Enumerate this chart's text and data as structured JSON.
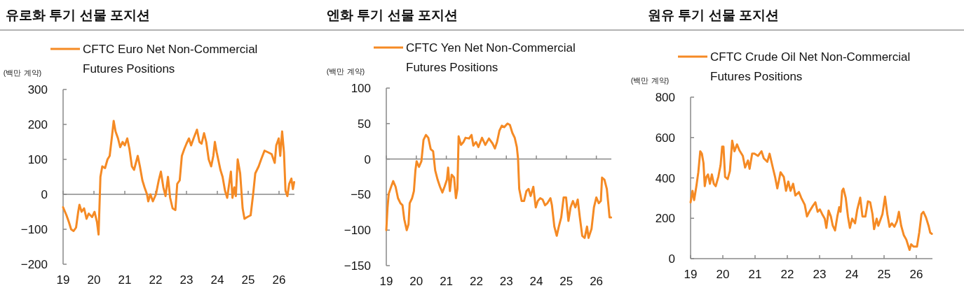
{
  "chart_data": [
    {
      "type": "line",
      "title": "유로화 투기 선물 포지션",
      "ylabel": "(백만 계약)",
      "legend": "top",
      "xlim": [
        19,
        26.5
      ],
      "xticks": [
        19,
        20,
        21,
        22,
        23,
        24,
        25,
        26
      ],
      "ylim": [
        -200,
        300
      ],
      "yticks": [
        -200,
        -100,
        0,
        100,
        200,
        300
      ],
      "x": [
        19.0,
        19.11,
        19.19,
        19.26,
        19.34,
        19.42,
        19.49,
        19.53,
        19.6,
        19.68,
        19.76,
        19.83,
        19.94,
        20.02,
        20.1,
        20.15,
        20.21,
        20.27,
        20.36,
        20.44,
        20.51,
        20.59,
        20.64,
        20.7,
        20.78,
        20.85,
        20.93,
        21.0,
        21.08,
        21.15,
        21.23,
        21.3,
        21.42,
        21.49,
        21.57,
        21.64,
        21.72,
        21.76,
        21.83,
        21.91,
        22.01,
        22.1,
        22.17,
        22.25,
        22.32,
        22.4,
        22.47,
        22.55,
        22.64,
        22.7,
        22.78,
        22.85,
        22.93,
        23.0,
        23.08,
        23.15,
        23.23,
        23.34,
        23.42,
        23.49,
        23.57,
        23.64,
        23.72,
        23.8,
        23.87,
        23.92,
        23.98,
        24.1,
        24.17,
        24.25,
        24.32,
        24.4,
        24.44,
        24.49,
        24.55,
        24.6,
        24.66,
        24.74,
        24.82,
        24.88,
        24.97,
        25.08,
        25.16,
        25.23,
        25.34,
        25.42,
        25.53,
        25.65,
        25.76,
        25.86,
        25.91,
        25.99,
        26.04,
        26.1,
        26.16,
        26.21,
        26.27,
        26.33,
        26.4,
        26.45,
        26.49
      ],
      "series": [
        {
          "name": "CFTC Euro Net Non-Commercial Futures Positions",
          "color": "#f58a24",
          "values": [
            -37,
            -60,
            -80,
            -100,
            -105,
            -95,
            -50,
            -30,
            -50,
            -40,
            -70,
            -55,
            -65,
            -50,
            -80,
            -115,
            50,
            80,
            75,
            100,
            110,
            170,
            210,
            180,
            160,
            135,
            150,
            140,
            160,
            130,
            80,
            70,
            110,
            80,
            40,
            20,
            0,
            -20,
            0,
            -20,
            0,
            40,
            65,
            20,
            -5,
            50,
            -10,
            -40,
            -45,
            30,
            40,
            110,
            130,
            145,
            160,
            140,
            160,
            185,
            150,
            145,
            175,
            150,
            100,
            80,
            110,
            150,
            120,
            70,
            50,
            10,
            -10,
            40,
            65,
            -10,
            20,
            -5,
            100,
            60,
            -40,
            -70,
            -65,
            -60,
            0,
            60,
            80,
            100,
            125,
            120,
            115,
            90,
            140,
            160,
            110,
            180,
            120,
            10,
            -5,
            30,
            45,
            15,
            35
          ]
        }
      ]
    },
    {
      "type": "line",
      "title": "엔화 투기 선물 포지션",
      "ylabel": "(백만 계약)",
      "legend": "top",
      "xlim": [
        19,
        26.5
      ],
      "xticks": [
        19,
        20,
        21,
        22,
        23,
        24,
        25,
        26
      ],
      "ylim": [
        -150,
        100
      ],
      "yticks": [
        -150,
        -100,
        -50,
        0,
        50,
        100
      ],
      "x": [
        19.0,
        19.04,
        19.08,
        19.16,
        19.23,
        19.31,
        19.39,
        19.47,
        19.54,
        19.6,
        19.68,
        19.74,
        19.78,
        19.86,
        19.92,
        19.97,
        20.01,
        20.09,
        20.17,
        20.24,
        20.32,
        20.4,
        20.48,
        20.56,
        20.63,
        20.71,
        20.79,
        20.87,
        20.94,
        21.02,
        21.06,
        21.12,
        21.18,
        21.26,
        21.32,
        21.37,
        21.41,
        21.49,
        21.57,
        21.64,
        21.76,
        21.84,
        21.9,
        21.99,
        22.07,
        22.19,
        22.3,
        22.42,
        22.54,
        22.62,
        22.69,
        22.77,
        22.85,
        22.93,
        23.04,
        23.12,
        23.2,
        23.28,
        23.35,
        23.39,
        23.43,
        23.51,
        23.59,
        23.67,
        23.74,
        23.81,
        23.9,
        23.98,
        24.05,
        24.13,
        24.21,
        24.29,
        24.37,
        24.47,
        24.52,
        24.6,
        24.68,
        24.75,
        24.83,
        24.91,
        24.99,
        25.07,
        25.14,
        25.22,
        25.3,
        25.38,
        25.45,
        25.53,
        25.61,
        25.69,
        25.74,
        25.84,
        25.92,
        26.0,
        26.08,
        26.15,
        26.19,
        26.27,
        26.35,
        26.41,
        26.44,
        26.49
      ],
      "series": [
        {
          "name": "CFTC Yen Net Non-Commercial Futures Positions",
          "color": "#f58a24",
          "values": [
            -100,
            -69,
            -49,
            -39,
            -31,
            -39,
            -55,
            -62,
            -65,
            -85,
            -100,
            -92,
            -62,
            -55,
            -45,
            -16,
            -3,
            -11,
            -3,
            27,
            34,
            30,
            14,
            11,
            -16,
            -29,
            -39,
            -47,
            -39,
            -29,
            -12,
            -45,
            -22,
            -26,
            -55,
            -42,
            32,
            20,
            24,
            30,
            29,
            34,
            19,
            24,
            17,
            30,
            20,
            29,
            22,
            15,
            24,
            40,
            47,
            45,
            50,
            48,
            37,
            30,
            17,
            1,
            -42,
            -59,
            -59,
            -45,
            -42,
            -52,
            -39,
            -68,
            -59,
            -55,
            -57,
            -65,
            -62,
            -55,
            -65,
            -95,
            -108,
            -95,
            -82,
            -54,
            -54,
            -87,
            -68,
            -59,
            -68,
            -57,
            -82,
            -108,
            -111,
            -95,
            -111,
            -98,
            -68,
            -54,
            -62,
            -59,
            -26,
            -29,
            -42,
            -68,
            -82,
            -82
          ]
        }
      ]
    },
    {
      "type": "line",
      "title": "원유 투기 선물 포지션",
      "ylabel": "(백만 계약)",
      "legend": "top",
      "xlim": [
        19,
        26.5
      ],
      "xticks": [
        19,
        20,
        21,
        22,
        23,
        24,
        25,
        26
      ],
      "ylim": [
        0,
        800
      ],
      "yticks": [
        0,
        200,
        400,
        600,
        800
      ],
      "x": [
        19.0,
        19.06,
        19.11,
        19.18,
        19.24,
        19.3,
        19.35,
        19.4,
        19.44,
        19.49,
        19.54,
        19.6,
        19.66,
        19.72,
        19.78,
        19.86,
        19.93,
        19.98,
        20.02,
        20.07,
        20.15,
        20.22,
        20.29,
        20.36,
        20.44,
        20.51,
        20.62,
        20.69,
        20.78,
        20.83,
        20.91,
        20.98,
        21.09,
        21.2,
        21.27,
        21.38,
        21.45,
        21.55,
        21.62,
        21.69,
        21.79,
        21.89,
        21.96,
        22.03,
        22.1,
        22.18,
        22.25,
        22.36,
        22.43,
        22.54,
        22.61,
        22.68,
        22.79,
        22.87,
        22.94,
        23.01,
        23.08,
        23.16,
        23.21,
        23.28,
        23.35,
        23.41,
        23.48,
        23.55,
        23.61,
        23.65,
        23.7,
        23.74,
        23.81,
        23.88,
        23.94,
        24.01,
        24.1,
        24.17,
        24.26,
        24.33,
        24.42,
        24.5,
        24.57,
        24.64,
        24.69,
        24.77,
        24.82,
        24.9,
        24.95,
        25.03,
        25.1,
        25.17,
        25.24,
        25.32,
        25.4,
        25.46,
        25.53,
        25.61,
        25.69,
        25.79,
        25.84,
        25.91,
        26.02,
        26.09,
        26.16,
        26.22,
        26.3,
        26.38,
        26.43,
        26.48
      ],
      "series": [
        {
          "name": "CFTC Crude Oil Net Non-Commercial Futures Positions",
          "color": "#f58a24",
          "values": [
            279,
            336,
            290,
            359,
            428,
            532,
            520,
            474,
            359,
            405,
            417,
            371,
            417,
            371,
            359,
            405,
            463,
            555,
            555,
            405,
            394,
            434,
            584,
            532,
            566,
            538,
            509,
            451,
            486,
            445,
            520,
            520,
            509,
            532,
            497,
            480,
            520,
            451,
            405,
            348,
            428,
            405,
            336,
            382,
            336,
            371,
            313,
            330,
            302,
            267,
            209,
            232,
            261,
            279,
            232,
            244,
            221,
            198,
            152,
            238,
            209,
            163,
            140,
            209,
            255,
            232,
            336,
            347,
            302,
            209,
            152,
            198,
            175,
            244,
            302,
            209,
            209,
            284,
            279,
            221,
            146,
            198,
            163,
            198,
            221,
            307,
            221,
            158,
            175,
            158,
            186,
            232,
            163,
            117,
            94,
            43,
            71,
            60,
            60,
            129,
            221,
            232,
            204,
            163,
            129,
            123
          ]
        }
      ]
    }
  ]
}
